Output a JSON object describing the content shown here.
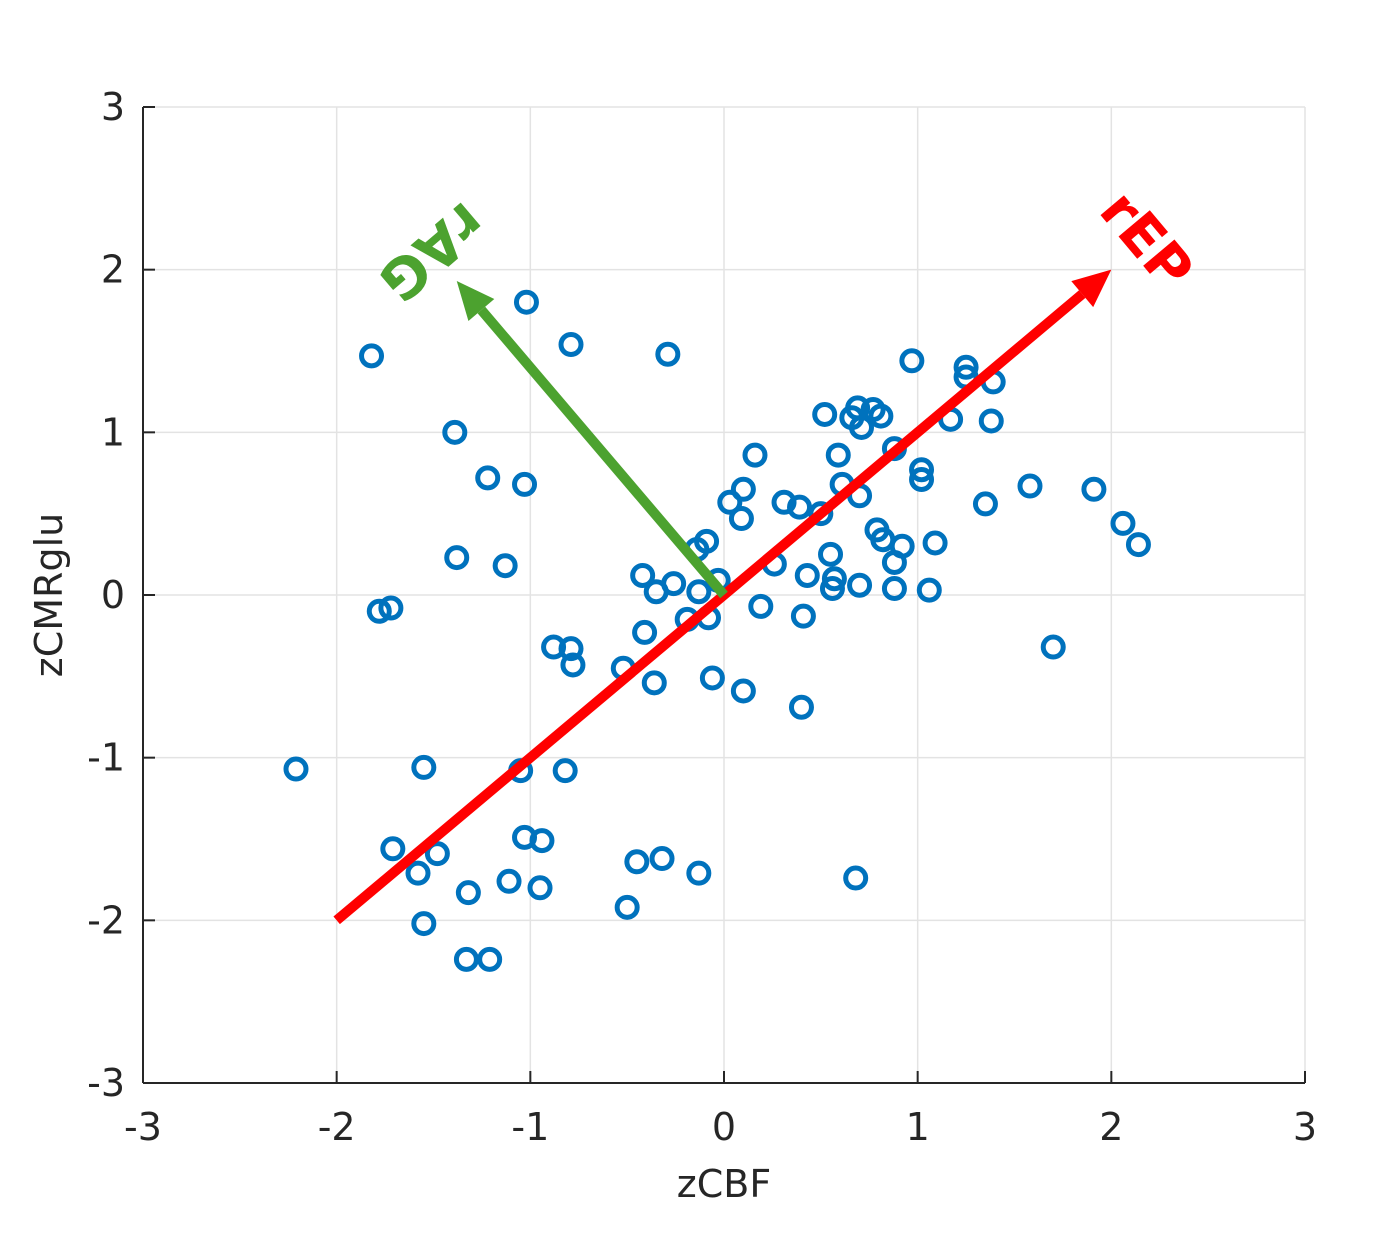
{
  "chart_data": {
    "type": "scatter",
    "xlabel": "zCBF",
    "ylabel": "zCMRglu",
    "xlim": [
      -3,
      3
    ],
    "ylim": [
      -3,
      3
    ],
    "xticks": [
      -3,
      -2,
      -1,
      0,
      1,
      2,
      3
    ],
    "yticks": [
      -3,
      -2,
      -1,
      0,
      1,
      2,
      3
    ],
    "xtick_labels": [
      "-3",
      "-2",
      "-1",
      "0",
      "1",
      "2",
      "3"
    ],
    "ytick_labels": [
      "-3",
      "-2",
      "-1",
      "0",
      "1",
      "2",
      "3"
    ],
    "grid": true,
    "marker_color": "#0072BD",
    "marker": "circle-open",
    "points": [
      {
        "x": -1.82,
        "y": 1.47
      },
      {
        "x": -1.02,
        "y": 1.8
      },
      {
        "x": -0.79,
        "y": 1.54
      },
      {
        "x": -0.29,
        "y": 1.48
      },
      {
        "x": -1.39,
        "y": 1.0
      },
      {
        "x": -1.22,
        "y": 0.72
      },
      {
        "x": -1.03,
        "y": 0.68
      },
      {
        "x": -1.38,
        "y": 0.23
      },
      {
        "x": -1.13,
        "y": 0.18
      },
      {
        "x": -1.78,
        "y": -0.1
      },
      {
        "x": -1.72,
        "y": -0.08
      },
      {
        "x": -0.88,
        "y": -0.32
      },
      {
        "x": -0.79,
        "y": -0.33
      },
      {
        "x": -0.78,
        "y": -0.43
      },
      {
        "x": -0.52,
        "y": -0.45
      },
      {
        "x": -0.36,
        "y": -0.54
      },
      {
        "x": -0.42,
        "y": 0.12
      },
      {
        "x": -0.35,
        "y": 0.02
      },
      {
        "x": -0.26,
        "y": 0.07
      },
      {
        "x": -0.41,
        "y": -0.23
      },
      {
        "x": -0.19,
        "y": -0.15
      },
      {
        "x": -0.14,
        "y": 0.28
      },
      {
        "x": -0.09,
        "y": 0.33
      },
      {
        "x": -0.13,
        "y": 0.02
      },
      {
        "x": -0.08,
        "y": -0.14
      },
      {
        "x": -0.03,
        "y": 0.09
      },
      {
        "x": -0.06,
        "y": -0.51
      },
      {
        "x": 0.03,
        "y": 0.57
      },
      {
        "x": 0.09,
        "y": 0.47
      },
      {
        "x": 0.1,
        "y": 0.65
      },
      {
        "x": 0.16,
        "y": 0.86
      },
      {
        "x": 0.19,
        "y": -0.07
      },
      {
        "x": 0.26,
        "y": 0.19
      },
      {
        "x": 0.31,
        "y": 0.57
      },
      {
        "x": 0.39,
        "y": 0.54
      },
      {
        "x": 0.43,
        "y": 0.12
      },
      {
        "x": 0.41,
        "y": -0.13
      },
      {
        "x": 0.5,
        "y": 0.5
      },
      {
        "x": 0.55,
        "y": 0.25
      },
      {
        "x": 0.57,
        "y": 0.1
      },
      {
        "x": 0.56,
        "y": 0.04
      },
      {
        "x": 0.59,
        "y": 0.86
      },
      {
        "x": 0.61,
        "y": 0.68
      },
      {
        "x": 0.7,
        "y": 0.61
      },
      {
        "x": 0.7,
        "y": 0.06
      },
      {
        "x": 0.1,
        "y": -0.59
      },
      {
        "x": 0.4,
        "y": -0.69
      },
      {
        "x": 0.52,
        "y": 1.11
      },
      {
        "x": 0.66,
        "y": 1.09
      },
      {
        "x": 0.69,
        "y": 1.15
      },
      {
        "x": 0.71,
        "y": 1.03
      },
      {
        "x": 0.77,
        "y": 1.14
      },
      {
        "x": 0.81,
        "y": 1.1
      },
      {
        "x": 0.79,
        "y": 0.4
      },
      {
        "x": 0.82,
        "y": 0.34
      },
      {
        "x": 0.88,
        "y": 0.9
      },
      {
        "x": 0.88,
        "y": 0.2
      },
      {
        "x": 0.88,
        "y": 0.04
      },
      {
        "x": 0.92,
        "y": 0.3
      },
      {
        "x": 0.97,
        "y": 1.44
      },
      {
        "x": 1.02,
        "y": 0.77
      },
      {
        "x": 1.02,
        "y": 0.71
      },
      {
        "x": 1.06,
        "y": 0.03
      },
      {
        "x": 1.09,
        "y": 0.32
      },
      {
        "x": 1.17,
        "y": 1.08
      },
      {
        "x": 1.25,
        "y": 1.4
      },
      {
        "x": 1.25,
        "y": 1.34
      },
      {
        "x": 1.39,
        "y": 1.31
      },
      {
        "x": 1.38,
        "y": 1.07
      },
      {
        "x": 1.35,
        "y": 0.56
      },
      {
        "x": 1.58,
        "y": 0.67
      },
      {
        "x": 1.7,
        "y": -0.32
      },
      {
        "x": 1.91,
        "y": 0.65
      },
      {
        "x": 2.06,
        "y": 0.44
      },
      {
        "x": 2.14,
        "y": 0.31
      },
      {
        "x": -2.21,
        "y": -1.07
      },
      {
        "x": -1.55,
        "y": -1.06
      },
      {
        "x": -1.05,
        "y": -1.08
      },
      {
        "x": -0.82,
        "y": -1.08
      },
      {
        "x": -1.71,
        "y": -1.56
      },
      {
        "x": -1.48,
        "y": -1.59
      },
      {
        "x": -1.58,
        "y": -1.71
      },
      {
        "x": -1.32,
        "y": -1.83
      },
      {
        "x": -1.11,
        "y": -1.76
      },
      {
        "x": -1.03,
        "y": -1.49
      },
      {
        "x": -0.94,
        "y": -1.51
      },
      {
        "x": -0.95,
        "y": -1.8
      },
      {
        "x": -0.45,
        "y": -1.64
      },
      {
        "x": -0.32,
        "y": -1.62
      },
      {
        "x": -0.13,
        "y": -1.71
      },
      {
        "x": -0.5,
        "y": -1.92
      },
      {
        "x": -1.55,
        "y": -2.02
      },
      {
        "x": -1.33,
        "y": -2.24
      },
      {
        "x": -1.21,
        "y": -2.24
      },
      {
        "x": 0.68,
        "y": -1.74
      }
    ],
    "arrows": [
      {
        "name": "rEP",
        "color": "#FF0000",
        "from": [
          -2,
          -2
        ],
        "to": [
          2,
          2
        ]
      },
      {
        "name": "rAG",
        "color": "#4CA22F",
        "from": [
          0,
          0
        ],
        "to": [
          -1.38,
          1.93
        ]
      }
    ]
  }
}
